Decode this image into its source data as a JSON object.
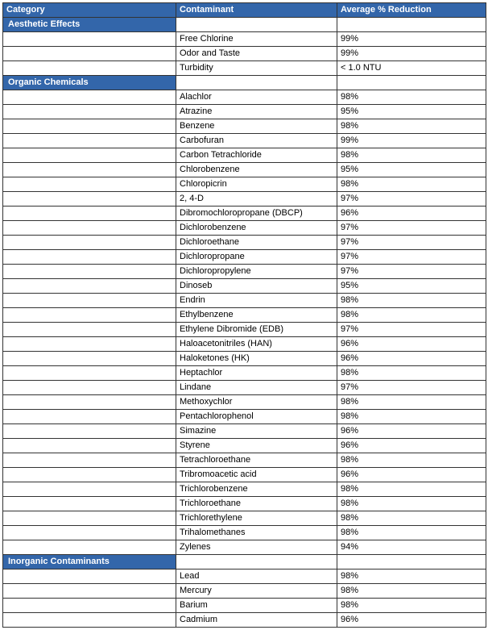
{
  "headers": {
    "category": "Category",
    "contaminant": "Contaminant",
    "reduction": "Average % Reduction"
  },
  "colors": {
    "header_bg": "#3366aa",
    "header_fg": "#ffffff",
    "border": "#333333",
    "cell_bg": "#ffffff",
    "cell_fg": "#000000"
  },
  "sections": [
    {
      "title": "Aesthetic Effects",
      "rows": [
        {
          "contaminant": "Free Chlorine",
          "reduction": "99%"
        },
        {
          "contaminant": "Odor and Taste",
          "reduction": "99%"
        },
        {
          "contaminant": "Turbidity",
          "reduction": "< 1.0 NTU"
        }
      ]
    },
    {
      "title": "Organic Chemicals",
      "rows": [
        {
          "contaminant": "Alachlor",
          "reduction": "98%"
        },
        {
          "contaminant": "Atrazine",
          "reduction": "95%"
        },
        {
          "contaminant": "Benzene",
          "reduction": "98%"
        },
        {
          "contaminant": "Carbofuran",
          "reduction": "99%"
        },
        {
          "contaminant": "Carbon Tetrachloride",
          "reduction": "98%"
        },
        {
          "contaminant": "Chlorobenzene",
          "reduction": "95%"
        },
        {
          "contaminant": "Chloropicrin",
          "reduction": "98%"
        },
        {
          "contaminant": "2, 4-D",
          "reduction": "97%"
        },
        {
          "contaminant": "Dibromochloropropane (DBCP)",
          "reduction": "96%"
        },
        {
          "contaminant": "Dichlorobenzene",
          "reduction": "97%"
        },
        {
          "contaminant": "Dichloroethane",
          "reduction": "97%"
        },
        {
          "contaminant": "Dichloropropane",
          "reduction": "97%"
        },
        {
          "contaminant": "Dichloropropylene",
          "reduction": "97%"
        },
        {
          "contaminant": "Dinoseb",
          "reduction": "95%"
        },
        {
          "contaminant": "Endrin",
          "reduction": "98%"
        },
        {
          "contaminant": "Ethylbenzene",
          "reduction": "98%"
        },
        {
          "contaminant": "Ethylene Dibromide (EDB)",
          "reduction": "97%"
        },
        {
          "contaminant": "Haloacetonitriles (HAN)",
          "reduction": "96%"
        },
        {
          "contaminant": "Haloketones (HK)",
          "reduction": "96%"
        },
        {
          "contaminant": "Heptachlor",
          "reduction": "98%"
        },
        {
          "contaminant": "Lindane",
          "reduction": "97%"
        },
        {
          "contaminant": "Methoxychlor",
          "reduction": "98%"
        },
        {
          "contaminant": "Pentachlorophenol",
          "reduction": "98%"
        },
        {
          "contaminant": "Simazine",
          "reduction": "96%"
        },
        {
          "contaminant": "Styrene",
          "reduction": "96%"
        },
        {
          "contaminant": "Tetrachloroethane",
          "reduction": "98%"
        },
        {
          "contaminant": "Tribromoacetic acid",
          "reduction": "96%"
        },
        {
          "contaminant": "Trichlorobenzene",
          "reduction": "98%"
        },
        {
          "contaminant": "Trichloroethane",
          "reduction": "98%"
        },
        {
          "contaminant": "Trichlorethylene",
          "reduction": "98%"
        },
        {
          "contaminant": "Trihalomethanes",
          "reduction": "98%"
        },
        {
          "contaminant": "Zylenes",
          "reduction": "94%"
        }
      ]
    },
    {
      "title": "Inorganic Contaminants",
      "rows": [
        {
          "contaminant": "Lead",
          "reduction": "98%"
        },
        {
          "contaminant": "Mercury",
          "reduction": "98%"
        },
        {
          "contaminant": "Barium",
          "reduction": "98%"
        },
        {
          "contaminant": "Cadmium",
          "reduction": "96%"
        }
      ]
    }
  ]
}
